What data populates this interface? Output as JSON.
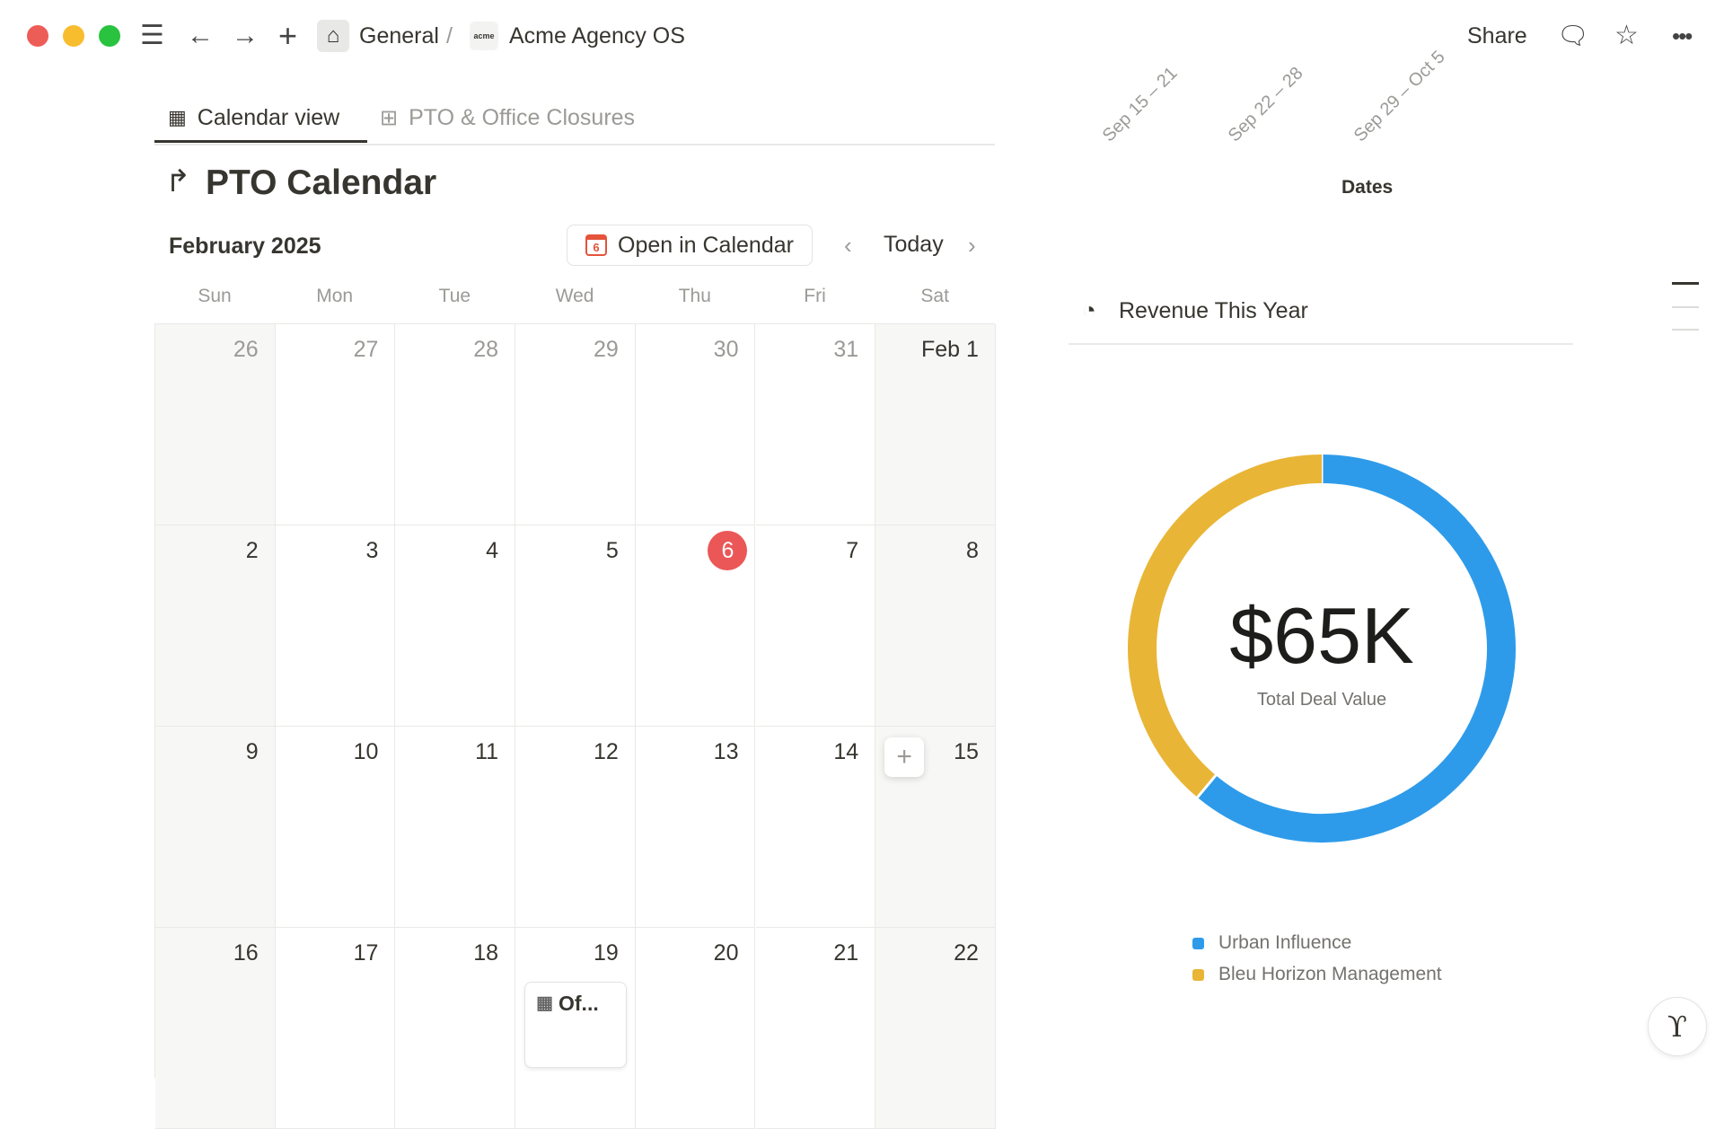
{
  "topbar": {
    "breadcrumb": [
      "General",
      "Acme Agency OS"
    ],
    "separator": "/",
    "workspace_logo": "acme",
    "share": "Share",
    "icons": [
      "menu-icon",
      "back-arrow-icon",
      "forward-arrow-icon",
      "plus-icon",
      "home-icon",
      "comment-icon",
      "star-icon",
      "more-icon"
    ]
  },
  "tabs": [
    {
      "label": "Calendar view",
      "active": true,
      "icon": "calendar-icon"
    },
    {
      "label": "PTO & Office Closures",
      "active": false,
      "icon": "table-icon"
    }
  ],
  "page": {
    "title": "PTO Calendar",
    "icon": "palm-tree-icon"
  },
  "calendar": {
    "month": "February 2025",
    "open_button": "Open in Calendar",
    "open_icon_day": "6",
    "today": "Today",
    "weekdays": [
      "Sun",
      "Mon",
      "Tue",
      "Wed",
      "Thu",
      "Fri",
      "Sat"
    ],
    "weeks": [
      [
        "26",
        "27",
        "28",
        "29",
        "30",
        "31",
        "Feb 1"
      ],
      [
        "2",
        "3",
        "4",
        "5",
        "6",
        "7",
        "8"
      ],
      [
        "9",
        "10",
        "11",
        "12",
        "13",
        "14",
        "15"
      ],
      [
        "16",
        "17",
        "18",
        "19",
        "20",
        "21",
        "22"
      ]
    ],
    "current_day": "6",
    "event": {
      "label": "Of...",
      "icon": "office-building-icon",
      "day": "19"
    }
  },
  "top_chart": {
    "x_tick_labels": [
      "Sep 15 – 21",
      "Sep 22 – 28",
      "Sep 29 – Oct 5"
    ],
    "xlabel": "Dates"
  },
  "revenue": {
    "title": "Revenue This Year",
    "icon": "pie-chart-icon"
  },
  "chart_data": {
    "type": "pie",
    "title": "Revenue This Year",
    "center_value": "$65K",
    "center_label": "Total Deal Value",
    "categories": [
      "Urban Influence",
      "Bleu Horizon Management"
    ],
    "values": [
      39.7,
      25.3
    ],
    "colors": [
      "#2e9bea",
      "#e8b536"
    ],
    "legend_position": "bottom"
  }
}
